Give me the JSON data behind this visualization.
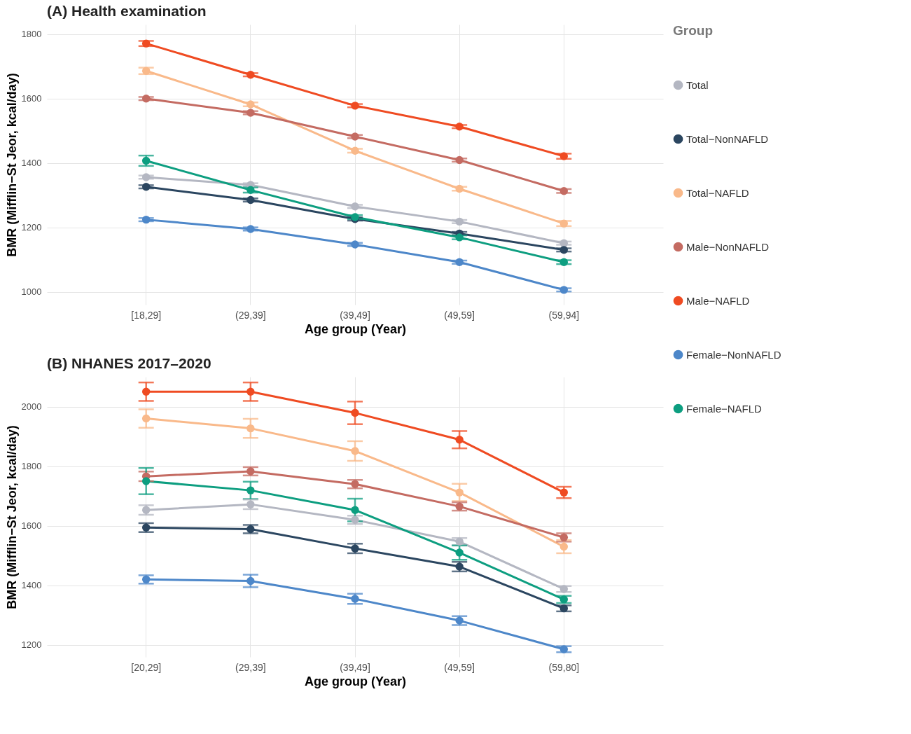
{
  "chart_data": [
    {
      "type": "line",
      "title": "(A) Health examination",
      "xlabel": "Age group (Year)",
      "ylabel": "BMR (Mifflin−St Jeor, kcal/day)",
      "legend_title": "Group",
      "legend": "right",
      "grid": true,
      "marker": "circle",
      "line_style": "solid",
      "categories": [
        "[18,29]",
        "(29,39]",
        "(39,49]",
        "(49,59]",
        "(59,94]"
      ],
      "ylim": [
        960,
        1830
      ],
      "yticks": [
        1000,
        1200,
        1400,
        1600,
        1800
      ],
      "series": [
        {
          "name": "Total",
          "color": "#b4b7c2",
          "values": [
            1356,
            1332,
            1265,
            1218,
            1151
          ],
          "errors": [
            5,
            5,
            5,
            5,
            5
          ]
        },
        {
          "name": "Total−NonNAFLD",
          "color": "#2b4660",
          "values": [
            1326,
            1285,
            1226,
            1181,
            1130
          ],
          "errors": [
            5,
            5,
            5,
            5,
            5
          ]
        },
        {
          "name": "Total−NAFLD",
          "color": "#f9b98a",
          "values": [
            1686,
            1582,
            1438,
            1320,
            1212
          ],
          "errors": [
            10,
            6,
            6,
            6,
            8
          ]
        },
        {
          "name": "Male−NonNAFLD",
          "color": "#c46b62",
          "values": [
            1600,
            1556,
            1482,
            1409,
            1313
          ],
          "errors": [
            5,
            5,
            5,
            5,
            6
          ]
        },
        {
          "name": "Male−NAFLD",
          "color": "#ef4b22",
          "values": [
            1771,
            1674,
            1578,
            1513,
            1421
          ],
          "errors": [
            8,
            5,
            5,
            5,
            8
          ]
        },
        {
          "name": "Female−NonNAFLD",
          "color": "#4d87c9",
          "values": [
            1224,
            1195,
            1147,
            1092,
            1006
          ],
          "errors": [
            5,
            5,
            5,
            5,
            5
          ]
        },
        {
          "name": "Female−NAFLD",
          "color": "#0d9e80",
          "values": [
            1407,
            1316,
            1232,
            1169,
            1092
          ],
          "errors": [
            16,
            8,
            6,
            6,
            6
          ]
        }
      ]
    },
    {
      "type": "line",
      "title": "(B) NHANES 2017–2020",
      "xlabel": "Age group (Year)",
      "ylabel": "BMR (Mifflin−St Jeor, kcal/day)",
      "grid": true,
      "marker": "circle",
      "line_style": "solid",
      "categories": [
        "[20,29]",
        "(29,39]",
        "(39,49]",
        "(49,59]",
        "(59,80]"
      ],
      "ylim": [
        1160,
        2100
      ],
      "yticks": [
        1200,
        1400,
        1600,
        1800,
        2000
      ],
      "series": [
        {
          "name": "Total",
          "color": "#b4b7c2",
          "values": [
            1653,
            1672,
            1620,
            1547,
            1388
          ],
          "errors": [
            16,
            16,
            14,
            12,
            10
          ]
        },
        {
          "name": "Total−NonNAFLD",
          "color": "#2b4660",
          "values": [
            1594,
            1589,
            1524,
            1463,
            1323
          ],
          "errors": [
            15,
            14,
            16,
            16,
            10
          ]
        },
        {
          "name": "Total−NAFLD",
          "color": "#f9b98a",
          "values": [
            1960,
            1927,
            1851,
            1712,
            1530
          ],
          "errors": [
            31,
            32,
            33,
            29,
            22
          ]
        },
        {
          "name": "Male−NonNAFLD",
          "color": "#c46b62",
          "values": [
            1766,
            1783,
            1740,
            1665,
            1561
          ],
          "errors": [
            16,
            14,
            14,
            14,
            14
          ]
        },
        {
          "name": "Male−NAFLD",
          "color": "#ef4b22",
          "values": [
            2050,
            2050,
            1979,
            1889,
            1712
          ],
          "errors": [
            31,
            31,
            38,
            29,
            19
          ]
        },
        {
          "name": "Female−NonNAFLD",
          "color": "#4d87c9",
          "values": [
            1420,
            1415,
            1355,
            1282,
            1186
          ],
          "errors": [
            14,
            21,
            17,
            15,
            10
          ]
        },
        {
          "name": "Female−NAFLD",
          "color": "#0d9e80",
          "values": [
            1750,
            1719,
            1653,
            1510,
            1353
          ],
          "errors": [
            44,
            29,
            38,
            24,
            12
          ]
        }
      ]
    }
  ]
}
